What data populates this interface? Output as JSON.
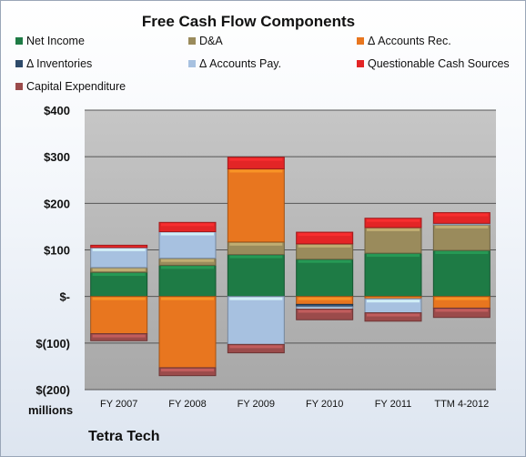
{
  "chart_data": {
    "type": "bar",
    "stacked": true,
    "title": "Free Cash Flow Components",
    "categories": [
      "FY 2007",
      "FY 2008",
      "FY 2009",
      "FY 2010",
      "FY 2011",
      "TTM 4-2012"
    ],
    "ylim": [
      -200,
      400
    ],
    "yticks": [
      400,
      300,
      200,
      100,
      0,
      -100,
      -200
    ],
    "ytick_labels": [
      "$400",
      "$300",
      "$200",
      "$100",
      "$-",
      "$(100)",
      "$(200)"
    ],
    "unit_label": "millions",
    "grid": true,
    "legend_position": "top",
    "series": [
      {
        "name": "Net Income",
        "color": "#1e7b45",
        "values": [
          52,
          67,
          90,
          80,
          93,
          99
        ]
      },
      {
        "name": "D&A",
        "color": "#9a8b5c",
        "values": [
          10,
          15,
          27,
          33,
          55,
          55
        ]
      },
      {
        "name": "Δ Accounts Rec.",
        "color": "#e8761f",
        "values": [
          -80,
          -153,
          157,
          -17,
          -5,
          -25
        ]
      },
      {
        "name": "Δ Inventories",
        "color": "#2e4a6a",
        "values": [
          0,
          0,
          0,
          -5,
          0,
          0
        ]
      },
      {
        "name": "Δ Accounts Pay.",
        "color": "#a7c1e0",
        "values": [
          43,
          57,
          -103,
          -5,
          -30,
          3
        ]
      },
      {
        "name": "Questionable Cash Sources",
        "color": "#e32526",
        "values": [
          5,
          20,
          25,
          25,
          20,
          23
        ]
      },
      {
        "name": "Capital Expenditure",
        "color": "#9b4b4b",
        "values": [
          -15,
          -17,
          -18,
          -23,
          -18,
          -20
        ]
      }
    ]
  },
  "footer": {
    "company": "Tetra Tech"
  }
}
